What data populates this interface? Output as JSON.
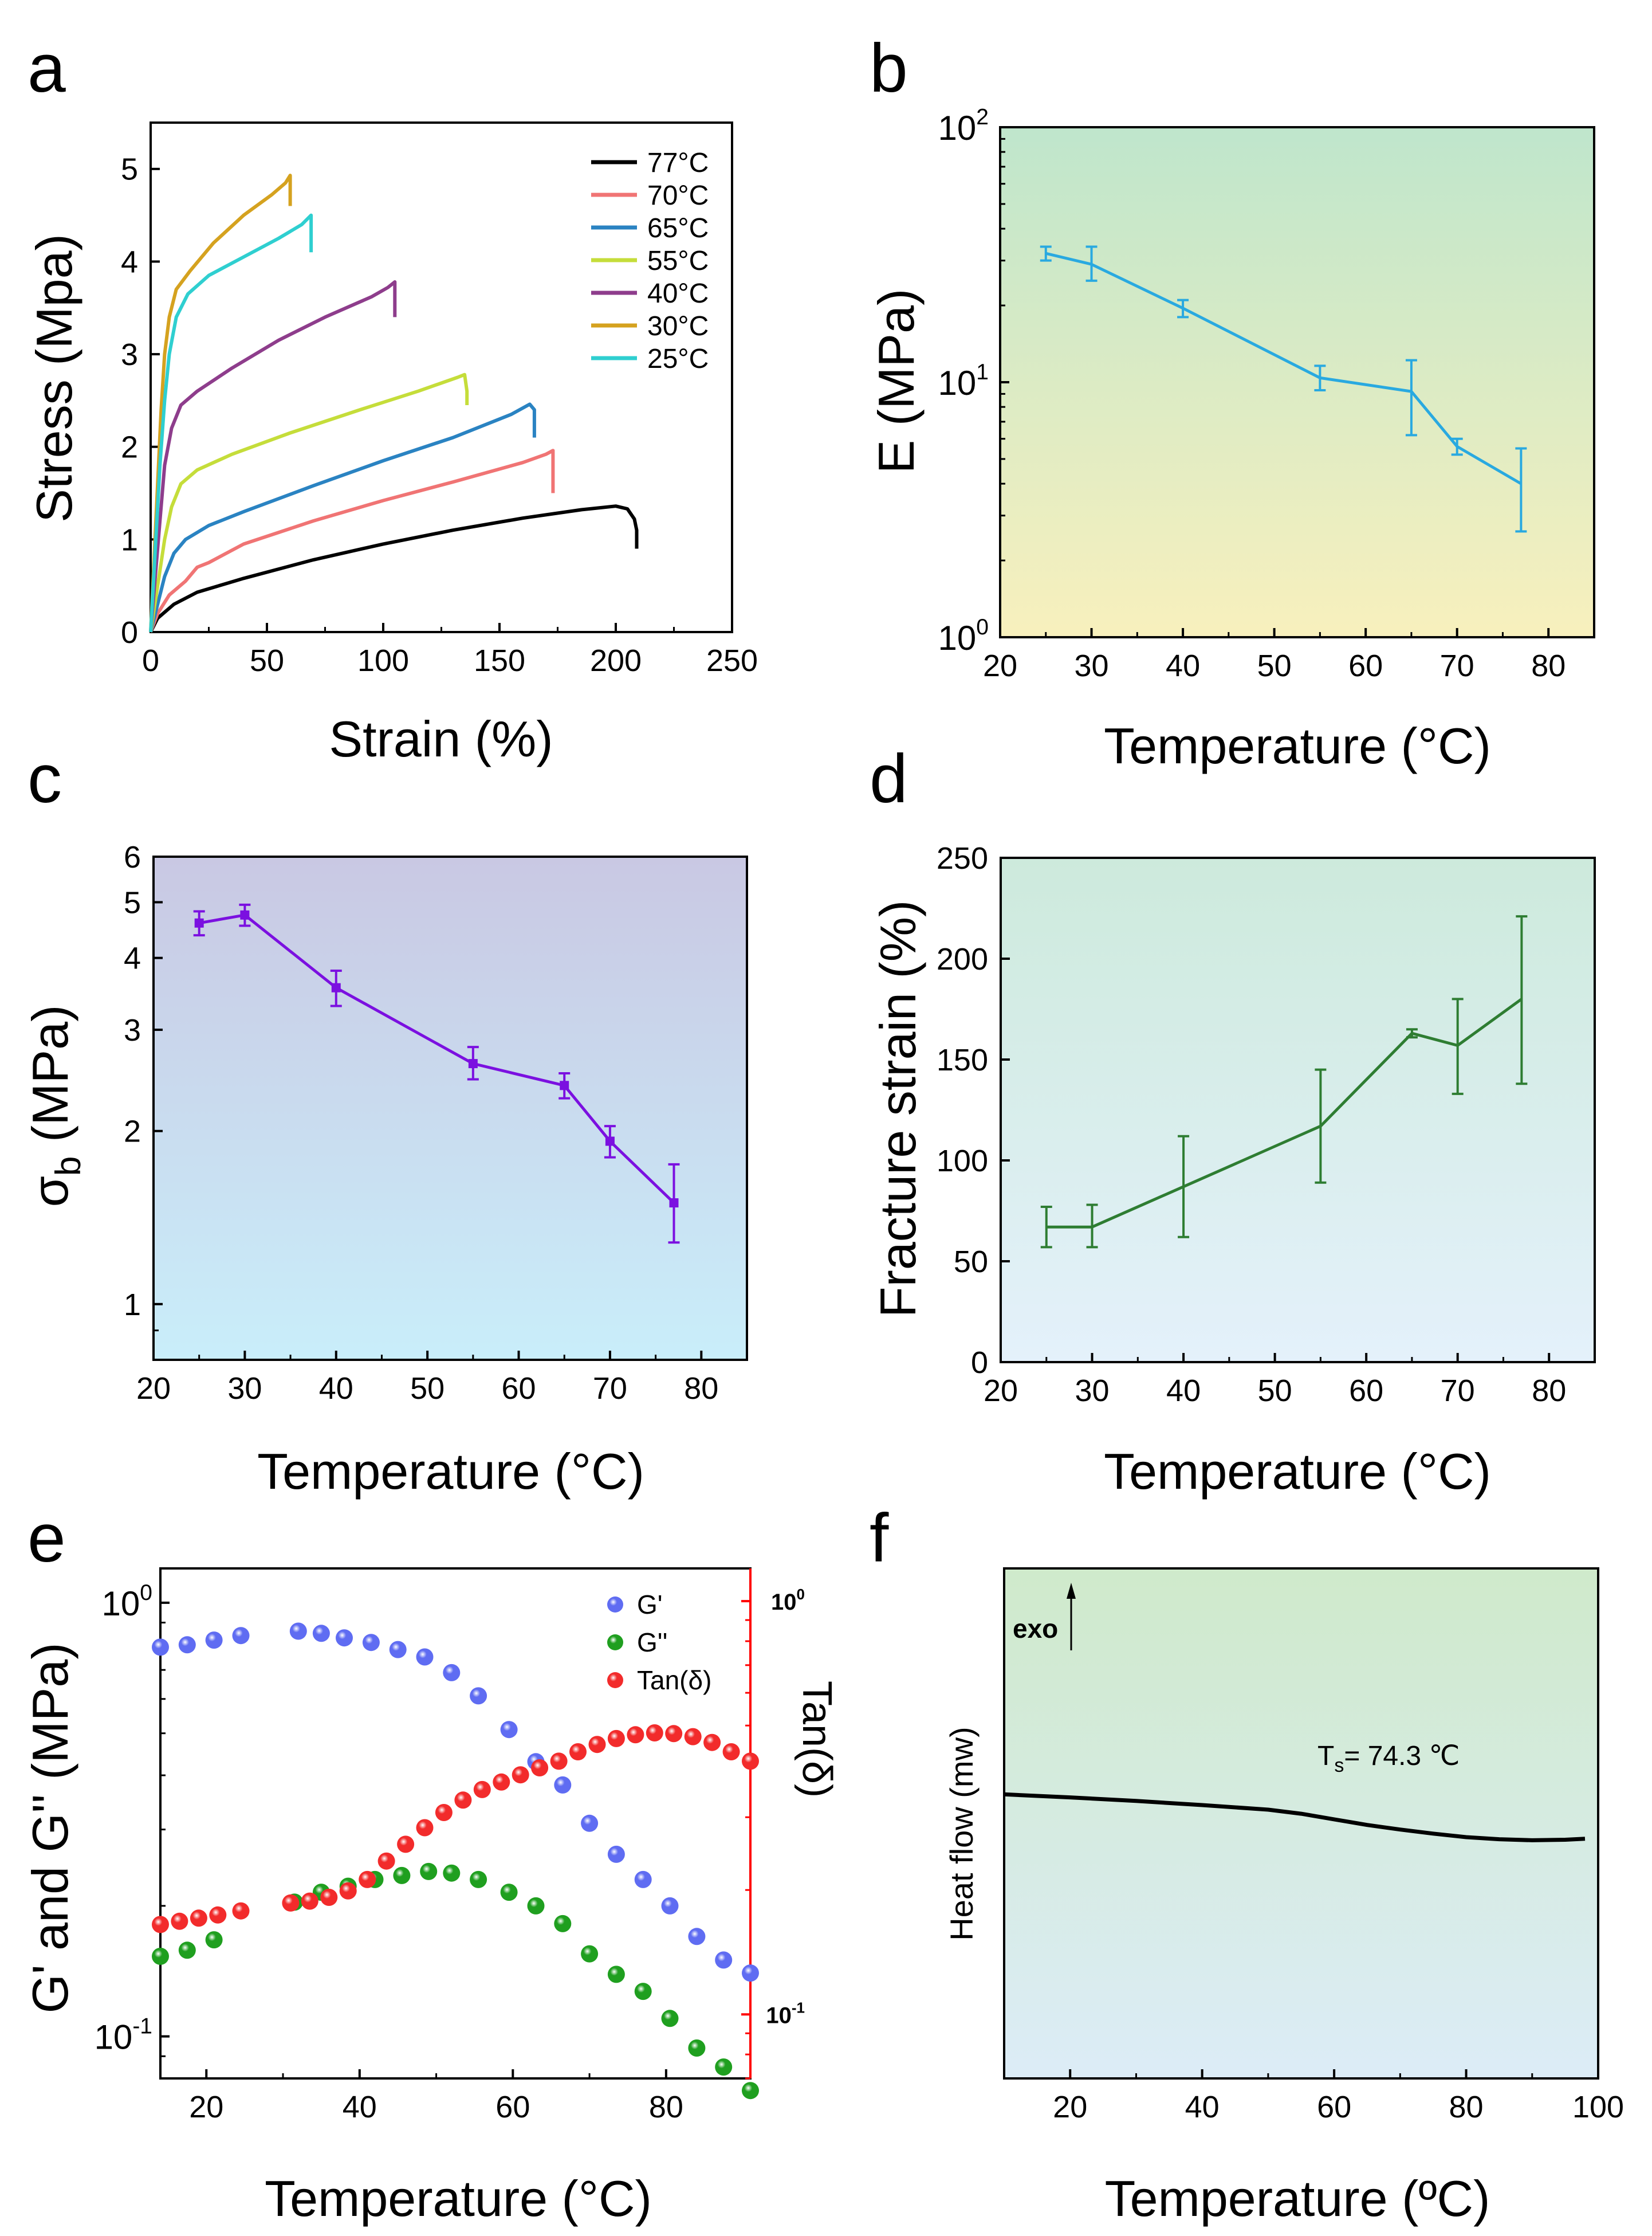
{
  "colors": {
    "axis": "#000000",
    "s77": "#000000",
    "s70": "#f07474",
    "s65": "#2a83c2",
    "s55": "#c5dd3a",
    "s40": "#8e3d8c",
    "s30": "#d5a21f",
    "s25": "#2fcfd0",
    "b_line": "#29a9e0",
    "c_line": "#7b10e0",
    "d_line": "#2e7d32",
    "g1": "#5f6cf2",
    "g2": "#1f9f1f",
    "tan": "#f22b2b",
    "tan_axis": "#ff0000",
    "bg_b_top": "#bfe6cc",
    "bg_b_bottom": "#f8f0bd",
    "bg_c_top": "#c9c8e3",
    "bg_c_bottom": "#c9eefa",
    "bg_d_top": "#cdeadc",
    "bg_d_bottom": "#e4f1fb",
    "bg_f_top": "#cfeacb",
    "bg_f_bottom": "#dcecf7"
  },
  "panels": {
    "a": {
      "letter": "a"
    },
    "b": {
      "letter": "b"
    },
    "c": {
      "letter": "c"
    },
    "d": {
      "letter": "d"
    },
    "e": {
      "letter": "e"
    },
    "f": {
      "letter": "f"
    }
  },
  "chart_data": [
    {
      "panel": "a",
      "type": "line",
      "xlabel": "Strain (%)",
      "ylabel": "Stress (Mpa)",
      "xlim": [
        0,
        250
      ],
      "ylim": [
        0,
        5.5
      ],
      "xticks": [
        "0",
        "50",
        "100",
        "150",
        "200",
        "250"
      ],
      "yticks": [
        "0",
        "1",
        "2",
        "3",
        "4",
        "5"
      ],
      "legend_position": "top-right",
      "series": [
        {
          "name": "77°C",
          "key": "s77",
          "points": [
            [
              0,
              0
            ],
            [
              3,
              0.15
            ],
            [
              10,
              0.3
            ],
            [
              20,
              0.43
            ],
            [
              40,
              0.58
            ],
            [
              70,
              0.78
            ],
            [
              100,
              0.95
            ],
            [
              130,
              1.1
            ],
            [
              160,
              1.23
            ],
            [
              185,
              1.32
            ],
            [
              200,
              1.36
            ],
            [
              205,
              1.33
            ],
            [
              208,
              1.22
            ],
            [
              209,
              1.1
            ],
            [
              209,
              0.9
            ]
          ]
        },
        {
          "name": "70°C",
          "key": "s70",
          "points": [
            [
              0,
              0
            ],
            [
              3,
              0.2
            ],
            [
              8,
              0.4
            ],
            [
              15,
              0.55
            ],
            [
              20,
              0.7
            ],
            [
              25,
              0.75
            ],
            [
              40,
              0.95
            ],
            [
              70,
              1.2
            ],
            [
              100,
              1.42
            ],
            [
              130,
              1.62
            ],
            [
              160,
              1.83
            ],
            [
              170,
              1.92
            ],
            [
              173,
              1.96
            ],
            [
              173,
              1.6
            ],
            [
              173,
              1.5
            ]
          ]
        },
        {
          "name": "65°C",
          "key": "s65",
          "points": [
            [
              0,
              0
            ],
            [
              3,
              0.3
            ],
            [
              6,
              0.6
            ],
            [
              10,
              0.85
            ],
            [
              15,
              1.0
            ],
            [
              25,
              1.15
            ],
            [
              40,
              1.3
            ],
            [
              70,
              1.58
            ],
            [
              100,
              1.85
            ],
            [
              130,
              2.1
            ],
            [
              155,
              2.35
            ],
            [
              163,
              2.46
            ],
            [
              165,
              2.4
            ],
            [
              165,
              2.1
            ]
          ]
        },
        {
          "name": "55°C",
          "key": "s55",
          "points": [
            [
              0,
              0
            ],
            [
              3,
              0.5
            ],
            [
              6,
              1.0
            ],
            [
              9,
              1.35
            ],
            [
              13,
              1.6
            ],
            [
              20,
              1.75
            ],
            [
              35,
              1.92
            ],
            [
              60,
              2.15
            ],
            [
              90,
              2.4
            ],
            [
              115,
              2.6
            ],
            [
              132,
              2.75
            ],
            [
              135,
              2.78
            ],
            [
              136,
              2.6
            ],
            [
              136,
              2.45
            ]
          ]
        },
        {
          "name": "40°C",
          "key": "s40",
          "points": [
            [
              0,
              0
            ],
            [
              2,
              0.6
            ],
            [
              4,
              1.2
            ],
            [
              6,
              1.8
            ],
            [
              9,
              2.2
            ],
            [
              13,
              2.45
            ],
            [
              20,
              2.6
            ],
            [
              35,
              2.85
            ],
            [
              55,
              3.15
            ],
            [
              75,
              3.4
            ],
            [
              95,
              3.62
            ],
            [
              102,
              3.72
            ],
            [
              105,
              3.78
            ],
            [
              105,
              3.55
            ],
            [
              105,
              3.4
            ]
          ]
        },
        {
          "name": "30°C",
          "key": "s30",
          "points": [
            [
              0,
              0
            ],
            [
              1.5,
              0.8
            ],
            [
              3,
              1.6
            ],
            [
              4.5,
              2.4
            ],
            [
              6,
              3.0
            ],
            [
              8,
              3.4
            ],
            [
              11,
              3.7
            ],
            [
              17,
              3.9
            ],
            [
              27,
              4.2
            ],
            [
              40,
              4.5
            ],
            [
              52,
              4.72
            ],
            [
              58,
              4.85
            ],
            [
              60,
              4.93
            ],
            [
              60,
              4.7
            ],
            [
              60,
              4.6
            ]
          ]
        },
        {
          "name": "25°C",
          "key": "s25",
          "points": [
            [
              0,
              0
            ],
            [
              2,
              0.9
            ],
            [
              4,
              1.8
            ],
            [
              6,
              2.5
            ],
            [
              8,
              3.0
            ],
            [
              11,
              3.4
            ],
            [
              16,
              3.65
            ],
            [
              25,
              3.85
            ],
            [
              40,
              4.05
            ],
            [
              55,
              4.25
            ],
            [
              65,
              4.4
            ],
            [
              69,
              4.5
            ],
            [
              69,
              4.25
            ],
            [
              69,
              4.1
            ]
          ]
        }
      ]
    },
    {
      "panel": "b",
      "type": "line",
      "scale_y": "log",
      "xlabel": "Temperature (°C)",
      "ylabel": "E (MPa)",
      "xlim": [
        20,
        85
      ],
      "ylim": [
        1,
        100
      ],
      "xticks": [
        "20",
        "30",
        "40",
        "50",
        "60",
        "70",
        "80"
      ],
      "yticks": [
        {
          "base": "10",
          "exp": "0",
          "value": 1
        },
        {
          "base": "10",
          "exp": "1",
          "value": 10
        },
        {
          "base": "10",
          "exp": "2",
          "value": 100
        }
      ],
      "x": [
        25,
        30,
        40,
        55,
        65,
        70,
        77
      ],
      "y": [
        32,
        29,
        19.5,
        10.4,
        9.2,
        5.6,
        4.0
      ],
      "err_low": [
        30,
        25,
        18,
        9.3,
        6.2,
        5.2,
        2.6
      ],
      "err_high": [
        34,
        34,
        21,
        11.6,
        12.2,
        6.0,
        5.5
      ]
    },
    {
      "panel": "c",
      "type": "line",
      "scale_y": "log",
      "xlabel": "Temperature (°C)",
      "ylabel": "σb (MPa)",
      "ylabel_main": "σ",
      "ylabel_sub": "b",
      "ylabel_unit": " (MPa)",
      "xlim": [
        20,
        85
      ],
      "ylim": [
        0.8,
        6
      ],
      "xticks": [
        "20",
        "30",
        "40",
        "50",
        "60",
        "70",
        "80"
      ],
      "yticks": [
        {
          "label": "1",
          "value": 1
        },
        {
          "label": "2",
          "value": 2
        },
        {
          "label": "3",
          "value": 3
        },
        {
          "label": "4",
          "value": 4
        },
        {
          "label": "5",
          "value": 5
        },
        {
          "label": "6",
          "value": 6
        }
      ],
      "x": [
        25,
        30,
        40,
        55,
        65,
        70,
        77
      ],
      "y": [
        4.6,
        4.75,
        3.55,
        2.62,
        2.4,
        1.92,
        1.5
      ],
      "err_low": [
        4.38,
        4.55,
        3.3,
        2.46,
        2.28,
        1.8,
        1.28
      ],
      "err_high": [
        4.82,
        4.95,
        3.8,
        2.8,
        2.52,
        2.04,
        1.75
      ]
    },
    {
      "panel": "d",
      "type": "line",
      "xlabel": "Temperature (°C)",
      "ylabel": "Fracture strain (%)",
      "xlim": [
        20,
        85
      ],
      "ylim": [
        0,
        250
      ],
      "xticks": [
        "20",
        "30",
        "40",
        "50",
        "60",
        "70",
        "80"
      ],
      "yticks": [
        "0",
        "50",
        "100",
        "150",
        "200",
        "250"
      ],
      "x": [
        25,
        30,
        40,
        55,
        65,
        70,
        77
      ],
      "y": [
        67,
        67,
        87,
        117,
        163,
        157,
        180
      ],
      "err_low": [
        57,
        57,
        62,
        89,
        161,
        133,
        138
      ],
      "err_high": [
        77,
        78,
        112,
        145,
        165,
        180,
        221
      ]
    },
    {
      "panel": "e",
      "type": "scatter",
      "scale_y": "log",
      "xlabel": "Temperature (°C)",
      "ylabel": "G' and G'' (MPa)",
      "ylabel_right": "Tan(δ)",
      "xlim": [
        14,
        91
      ],
      "ylim": [
        0.08,
        1.2
      ],
      "ylim_right": [
        0.07,
        1.2
      ],
      "xticks": [
        "20",
        "40",
        "60",
        "80"
      ],
      "yticks": [
        {
          "base": "10",
          "exp": "-1",
          "value": 0.1
        },
        {
          "base": "10",
          "exp": "0",
          "value": 1
        }
      ],
      "yticks_right": [
        {
          "base": "10",
          "exp": "-1",
          "value": 0.1
        },
        {
          "base": "10",
          "exp": "0",
          "value": 1
        }
      ],
      "legend_position": "top-right",
      "series": [
        {
          "name": "G'",
          "key": "g1",
          "axis": "left",
          "x": [
            14,
            17.5,
            21,
            24.5,
            32,
            35,
            38,
            41.5,
            45,
            48.5,
            52,
            55.5,
            59.5,
            63,
            66.5,
            70,
            73.5,
            77,
            80.5,
            84,
            87.5,
            91
          ],
          "y": [
            0.79,
            0.8,
            0.82,
            0.84,
            0.86,
            0.85,
            0.83,
            0.81,
            0.78,
            0.75,
            0.69,
            0.61,
            0.51,
            0.43,
            0.38,
            0.31,
            0.263,
            0.23,
            0.2,
            0.17,
            0.15,
            0.14
          ]
        },
        {
          "name": "G''",
          "key": "g2",
          "axis": "left",
          "x": [
            14,
            17.5,
            21,
            31.5,
            35,
            38.5,
            42,
            45.5,
            49,
            52,
            55.5,
            59.5,
            63,
            66.5,
            70,
            73.5,
            77,
            80.5,
            84,
            87.5,
            91
          ],
          "y": [
            0.153,
            0.158,
            0.167,
            0.204,
            0.215,
            0.222,
            0.23,
            0.235,
            0.24,
            0.238,
            0.23,
            0.215,
            0.2,
            0.182,
            0.155,
            0.139,
            0.127,
            0.11,
            0.094,
            0.085,
            0.075
          ]
        },
        {
          "name": "Tan(δ)",
          "key": "tan",
          "axis": "right",
          "x": [
            14,
            16.5,
            19,
            21.5,
            24.5,
            31,
            33.5,
            36,
            38.5,
            41,
            43.5,
            46,
            48.5,
            51,
            53.5,
            56,
            58.5,
            61,
            63.5,
            66,
            68.5,
            71,
            73.5,
            76,
            78.5,
            81,
            83.5,
            86,
            88.5,
            91
          ],
          "y": [
            0.165,
            0.168,
            0.171,
            0.174,
            0.178,
            0.186,
            0.188,
            0.192,
            0.199,
            0.212,
            0.235,
            0.258,
            0.283,
            0.308,
            0.33,
            0.35,
            0.365,
            0.38,
            0.395,
            0.41,
            0.432,
            0.45,
            0.465,
            0.475,
            0.48,
            0.478,
            0.47,
            0.455,
            0.432,
            0.41
          ]
        }
      ]
    },
    {
      "panel": "f",
      "type": "line",
      "xlabel": "Temperature (ºC)",
      "ylabel": "Heat flow (mw)",
      "xlim": [
        10,
        100
      ],
      "ylim": [
        0,
        1
      ],
      "xticks": [
        "20",
        "40",
        "60",
        "80",
        "100"
      ],
      "yticks": [],
      "annotation_exo": "exo",
      "annotation_ts_main": "T",
      "annotation_ts_sub": "s",
      "annotation_ts_rest": "= 74.3 ℃",
      "annotation_ts": "Ts= 74.3 ℃",
      "x": [
        10,
        20,
        30,
        40,
        50,
        55,
        60,
        65,
        70,
        75,
        80,
        85,
        90,
        95,
        98
      ],
      "y": [
        0.557,
        0.551,
        0.544,
        0.536,
        0.527,
        0.519,
        0.508,
        0.497,
        0.488,
        0.48,
        0.473,
        0.469,
        0.467,
        0.468,
        0.47
      ]
    }
  ]
}
